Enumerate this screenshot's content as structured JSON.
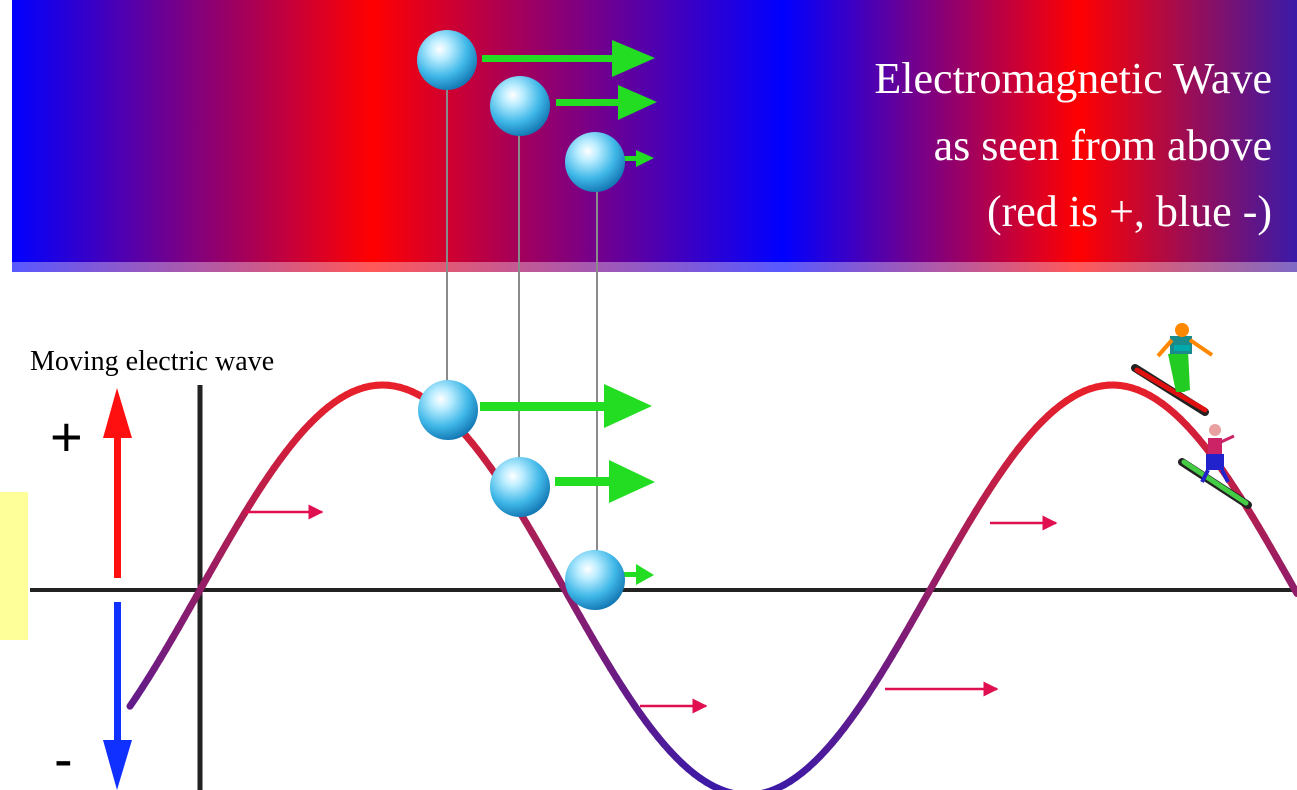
{
  "banner": {
    "title_line1": "Electromagnetic Wave",
    "title_line2": "as seen from above",
    "title_line3": "(red is +, blue -)",
    "text_color": "#ffffff",
    "positive_color": "#ff0000",
    "negative_color": "#0000ff"
  },
  "wave": {
    "label": "Moving electric wave",
    "plus_sign": "+",
    "minus_sign": "-",
    "wave_color_positive": "#e8202a",
    "wave_color_negative": "#3a1aa8",
    "arrow_color": "#e0105a",
    "axis_color": "#222222"
  },
  "particles": {
    "color": "#40b8e8",
    "velocity_arrow_color": "#22dd22",
    "connector_color": "#8a8a8a"
  },
  "side_note": {
    "background": "#ffff99"
  },
  "figures": {
    "icons": [
      "surfer-1-icon",
      "surfer-2-icon"
    ]
  }
}
